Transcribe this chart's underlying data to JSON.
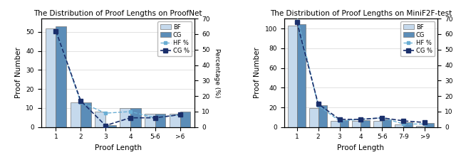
{
  "left": {
    "title": "The Distribution of Proof Lengths on ProofNet",
    "xlabel": "Proof Length",
    "ylabel_left": "Proof Number",
    "ylabel_right": "Percentage (%)",
    "x_labels": [
      "1",
      "2",
      "3",
      "4",
      "5-6",
      ">6"
    ],
    "bf_values": [
      52,
      13,
      8,
      10,
      7,
      7
    ],
    "cg_values": [
      53,
      13,
      1,
      10,
      7,
      8
    ],
    "hf_pct": [
      62,
      16,
      9,
      10,
      6,
      8
    ],
    "cg_pct": [
      62,
      17,
      1,
      6,
      6,
      8
    ],
    "ylim_left": [
      0,
      57
    ],
    "ylim_right": [
      0,
      70
    ],
    "yticks_left": [
      0,
      10,
      20,
      30,
      40,
      50
    ],
    "yticks_right": [
      0,
      10,
      20,
      30,
      40,
      50,
      60,
      70
    ]
  },
  "right": {
    "title": "The Distribution of Proof Lengths on MiniF2F-test",
    "xlabel": "Proof Length",
    "ylabel_left": "Proof Number",
    "ylabel_right": "Percentage (%)",
    "x_labels": [
      "1",
      "2",
      "3",
      "4",
      "5-6",
      "7-9",
      ">9"
    ],
    "bf_values": [
      103,
      19,
      6,
      6,
      6,
      3,
      1
    ],
    "cg_values": [
      104,
      22,
      7,
      7,
      8,
      5,
      4
    ],
    "hf_pct": [
      72,
      14,
      4,
      5,
      6,
      2,
      2
    ],
    "cg_pct": [
      68,
      15,
      5,
      5,
      6,
      4,
      3
    ],
    "ylim_left": [
      0,
      110
    ],
    "ylim_right": [
      0,
      70
    ],
    "yticks_left": [
      0,
      20,
      40,
      60,
      80,
      100
    ],
    "yticks_right": [
      0,
      10,
      20,
      30,
      40,
      50,
      60,
      70
    ]
  },
  "bf_color": "#c5d9ec",
  "cg_color": "#5b8db8",
  "hf_line_color": "#6aaed4",
  "cg_line_color": "#1a2f6b",
  "bar_edge_color": "#777777",
  "bar_width": 0.42,
  "legend_labels": [
    "BF",
    "CG",
    "HF %",
    "CG %"
  ]
}
